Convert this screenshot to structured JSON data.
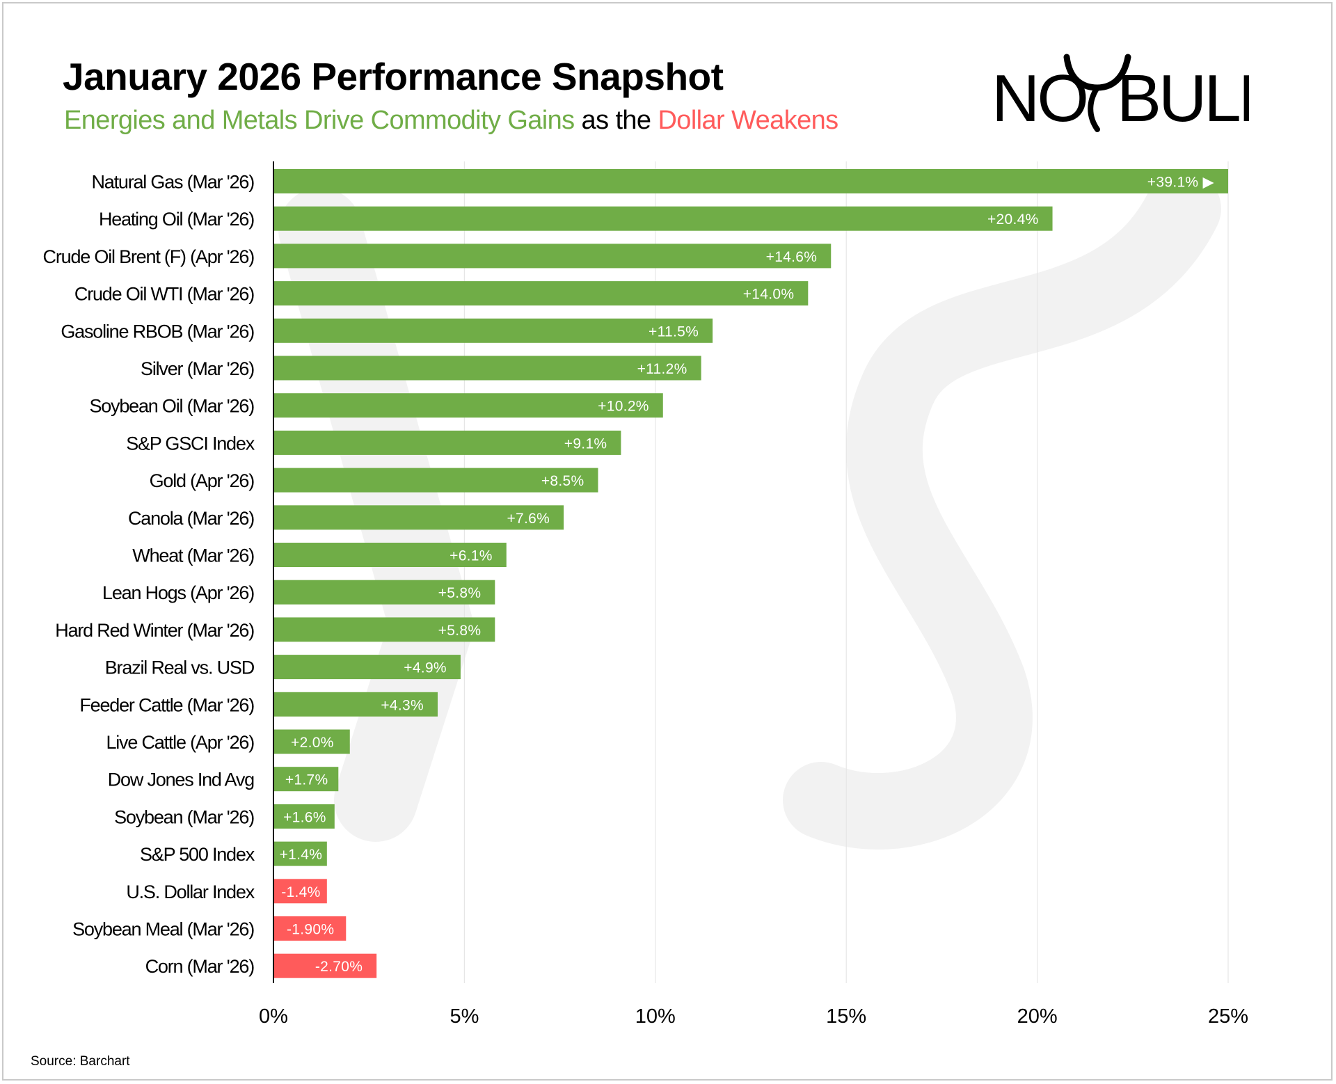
{
  "header": {
    "title": "January 2026 Performance Snapshot",
    "subtitle_green": "Energies and Metals Drive Commodity Gains",
    "subtitle_black": " as the ",
    "subtitle_red": "Dollar Weakens"
  },
  "logo": {
    "text_left": "NO",
    "text_right": "BULL",
    "icon": "bull-horns-logo-icon"
  },
  "colors": {
    "positive": "#70ad47",
    "negative": "#ff5b5b",
    "axis": "#000000",
    "grid": "#e6e6e6"
  },
  "source": "Source: Barchart",
  "chart_data": {
    "type": "bar",
    "orientation": "horizontal",
    "title": "January 2026 Performance Snapshot",
    "xlim": [
      0,
      25
    ],
    "xticks": [
      0,
      5,
      10,
      15,
      20,
      25
    ],
    "xtick_labels": [
      "0%",
      "5%",
      "10%",
      "15%",
      "20%",
      "25%"
    ],
    "grid": true,
    "categories": [
      "Natural Gas (Mar '26)",
      "Heating Oil (Mar '26)",
      "Crude Oil Brent (F) (Apr '26)",
      "Crude Oil WTI (Mar '26)",
      "Gasoline RBOB (Mar '26)",
      "Silver (Mar '26)",
      "Soybean Oil (Mar '26)",
      "S&P GSCI Index",
      "Gold (Apr '26)",
      "Canola (Mar '26)",
      "Wheat (Mar '26)",
      "Lean Hogs (Apr '26)",
      "Hard Red Winter (Mar '26)",
      "Brazil Real vs. USD",
      "Feeder Cattle (Mar '26)",
      "Live Cattle (Apr '26)",
      "Dow Jones Ind Avg",
      "Soybean (Mar '26)",
      "S&P 500 Index",
      "U.S. Dollar Index",
      "Soybean Meal (Mar '26)",
      "Corn (Mar '26)"
    ],
    "values": [
      39.1,
      20.4,
      14.6,
      14.0,
      11.5,
      11.2,
      10.2,
      9.1,
      8.5,
      7.6,
      6.1,
      5.8,
      5.8,
      4.9,
      4.3,
      2.0,
      1.7,
      1.6,
      1.4,
      -1.4,
      -1.9,
      -2.7
    ],
    "value_labels": [
      "+39.1% ▶",
      "+20.4%",
      "+14.6%",
      "+14.0%",
      "+11.5%",
      "+11.2%",
      "+10.2%",
      "+9.1%",
      "+8.5%",
      "+7.6%",
      "+6.1%",
      "+5.8%",
      "+5.8%",
      "+4.9%",
      "+4.3%",
      "+2.0%",
      "+1.7%",
      "+1.6%",
      "+1.4%",
      "-1.4%",
      "-1.90%",
      "-2.70%"
    ],
    "note": "Negative values drawn as bars extending right in red (absolute magnitude); Natural Gas bar clipped at axis max."
  }
}
